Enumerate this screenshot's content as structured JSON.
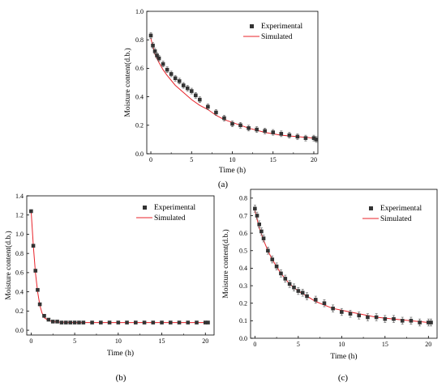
{
  "chart_data": [
    {
      "type": "scatter",
      "caption": "(a)",
      "xlabel": "Time (h)",
      "ylabel": "Moisture content(d.b.)",
      "xlim": [
        -0.5,
        20.5
      ],
      "ylim": [
        0,
        1.0
      ],
      "x_ticks": [
        "0",
        "5",
        "10",
        "15",
        "20"
      ],
      "y_ticks": [
        "0.0",
        "0.2",
        "0.4",
        "0.6",
        "0.8",
        "1.0"
      ],
      "grid": false,
      "legend_position": "top-right",
      "series": [
        {
          "name": "Experimental",
          "style": "square-markers-with-error-bars",
          "color": "#333333",
          "x": [
            0,
            0.25,
            0.5,
            0.75,
            1,
            1.5,
            2,
            2.5,
            3,
            3.5,
            4,
            4.5,
            5,
            5.5,
            6,
            7,
            8,
            9,
            10,
            11,
            12,
            13,
            14,
            15,
            16,
            17,
            18,
            19,
            20,
            20.3
          ],
          "y": [
            0.83,
            0.76,
            0.72,
            0.69,
            0.67,
            0.63,
            0.59,
            0.56,
            0.53,
            0.51,
            0.48,
            0.46,
            0.44,
            0.41,
            0.38,
            0.33,
            0.29,
            0.25,
            0.21,
            0.2,
            0.18,
            0.17,
            0.16,
            0.15,
            0.14,
            0.13,
            0.12,
            0.11,
            0.11,
            0.1
          ],
          "error": 0.02
        },
        {
          "name": "Simulated",
          "style": "line",
          "color": "#e8232a",
          "x": [
            0,
            0.5,
            1,
            1.5,
            2,
            3,
            4,
            5,
            6,
            7,
            8,
            9,
            10,
            12,
            14,
            16,
            18,
            20,
            20.3
          ],
          "y": [
            0.81,
            0.7,
            0.64,
            0.59,
            0.55,
            0.48,
            0.43,
            0.38,
            0.34,
            0.31,
            0.27,
            0.24,
            0.22,
            0.18,
            0.15,
            0.13,
            0.12,
            0.11,
            0.11
          ]
        }
      ]
    },
    {
      "type": "scatter",
      "caption": "(b)",
      "xlabel": "Time (h)",
      "ylabel": "Moisture content(d.b.)",
      "xlim": [
        -0.5,
        21
      ],
      "ylim": [
        -0.05,
        1.4
      ],
      "x_ticks": [
        "0",
        "5",
        "10",
        "15",
        "20"
      ],
      "y_ticks": [
        "0.0",
        "0.2",
        "0.4",
        "0.6",
        "0.8",
        "1.0",
        "1.2",
        "1.4"
      ],
      "grid": false,
      "legend_position": "top-right",
      "series": [
        {
          "name": "Experimental",
          "style": "square-markers-with-error-bars",
          "color": "#333333",
          "x": [
            0,
            0.25,
            0.5,
            0.75,
            1,
            1.5,
            2,
            2.5,
            3,
            3.5,
            4,
            4.5,
            5,
            5.5,
            6,
            7,
            8,
            9,
            10,
            11,
            12,
            13,
            14,
            15,
            16,
            17,
            18,
            19,
            20,
            20.3
          ],
          "y": [
            1.24,
            0.88,
            0.62,
            0.42,
            0.27,
            0.15,
            0.11,
            0.09,
            0.09,
            0.08,
            0.08,
            0.08,
            0.08,
            0.08,
            0.08,
            0.08,
            0.08,
            0.08,
            0.08,
            0.08,
            0.08,
            0.08,
            0.08,
            0.08,
            0.08,
            0.08,
            0.08,
            0.08,
            0.08,
            0.08
          ],
          "error": 0.01
        },
        {
          "name": "Simulated",
          "style": "line",
          "color": "#e8232a",
          "x": [
            0,
            0.25,
            0.5,
            0.75,
            1,
            1.25,
            1.5,
            2,
            2.5,
            3,
            4,
            5,
            7,
            10,
            15,
            20,
            20.3
          ],
          "y": [
            1.24,
            0.88,
            0.6,
            0.4,
            0.26,
            0.18,
            0.13,
            0.1,
            0.09,
            0.085,
            0.082,
            0.08,
            0.08,
            0.08,
            0.08,
            0.08,
            0.08
          ]
        }
      ]
    },
    {
      "type": "scatter",
      "caption": "(c)",
      "xlabel": "Time (h)",
      "ylabel": "Moisture content(d.b.)",
      "xlim": [
        -0.5,
        21
      ],
      "ylim": [
        0,
        0.85
      ],
      "x_ticks": [
        "0",
        "5",
        "10",
        "15",
        "20"
      ],
      "y_ticks": [
        "0.0",
        "0.1",
        "0.2",
        "0.3",
        "0.4",
        "0.5",
        "0.6",
        "0.7",
        "0.8"
      ],
      "grid": false,
      "legend_position": "top-right",
      "series": [
        {
          "name": "Experimental",
          "style": "square-markers-with-error-bars",
          "color": "#333333",
          "x": [
            0,
            0.25,
            0.5,
            0.75,
            1,
            1.5,
            2,
            2.5,
            3,
            3.5,
            4,
            4.5,
            5,
            5.5,
            6,
            7,
            8,
            9,
            10,
            11,
            12,
            13,
            14,
            15,
            16,
            17,
            18,
            19,
            20,
            20.3
          ],
          "y": [
            0.74,
            0.7,
            0.65,
            0.61,
            0.57,
            0.5,
            0.45,
            0.41,
            0.37,
            0.34,
            0.31,
            0.29,
            0.27,
            0.26,
            0.24,
            0.22,
            0.2,
            0.17,
            0.15,
            0.14,
            0.13,
            0.12,
            0.12,
            0.11,
            0.11,
            0.1,
            0.1,
            0.09,
            0.09,
            0.09
          ],
          "error": 0.02
        },
        {
          "name": "Simulated",
          "style": "line",
          "color": "#e8232a",
          "x": [
            0,
            0.5,
            1,
            1.5,
            2,
            3,
            4,
            5,
            6,
            7,
            8,
            9,
            10,
            12,
            14,
            16,
            18,
            20,
            20.3
          ],
          "y": [
            0.73,
            0.63,
            0.56,
            0.5,
            0.45,
            0.37,
            0.31,
            0.27,
            0.24,
            0.21,
            0.19,
            0.17,
            0.16,
            0.14,
            0.12,
            0.11,
            0.1,
            0.09,
            0.09
          ]
        }
      ]
    }
  ]
}
